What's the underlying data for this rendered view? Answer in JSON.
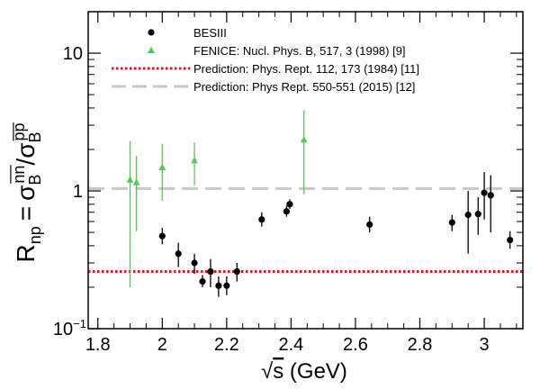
{
  "chart_data": {
    "type": "scatter",
    "title": "",
    "xlabel": "√s (GeV)",
    "ylabel": "R_np = σ_B^{n̅n}/σ_B^{p̅p}",
    "ylabel_parts": {
      "main": "R",
      "main_sub": "np",
      "equals": "=",
      "sigma1": "σ",
      "sigma1_sub": "B",
      "sigma1_sup": "n̅n̅",
      "slash": "/",
      "sigma2": "σ",
      "sigma2_sub": "B",
      "sigma2_sup": "p̅p̅"
    },
    "xlabel_parts": {
      "root": "√",
      "var": "s",
      "unit": " (GeV)"
    },
    "xlim": [
      1.77,
      3.12
    ],
    "ylim": [
      0.1,
      20
    ],
    "yscale": "log",
    "xticks": [
      "1.8",
      "2",
      "2.2",
      "2.4",
      "2.6",
      "2.8",
      "3"
    ],
    "xtick_values": [
      1.8,
      2.0,
      2.2,
      2.4,
      2.6,
      2.8,
      3.0
    ],
    "yticks": [
      {
        "value": 10,
        "label": "10"
      },
      {
        "value": 1,
        "label": "1"
      },
      {
        "value": 0.1,
        "label": "10",
        "exponent": "−1"
      }
    ],
    "legend_position": "top-left",
    "series": [
      {
        "name": "BESIII",
        "marker": "circle",
        "color": "#000000",
        "points": [
          {
            "x": 2.0,
            "y": 0.47,
            "lo": 0.41,
            "hi": 0.54
          },
          {
            "x": 2.05,
            "y": 0.35,
            "lo": 0.28,
            "hi": 0.42
          },
          {
            "x": 2.1,
            "y": 0.3,
            "lo": 0.25,
            "hi": 0.35
          },
          {
            "x": 2.125,
            "y": 0.22,
            "lo": 0.2,
            "hi": 0.245
          },
          {
            "x": 2.15,
            "y": 0.26,
            "lo": 0.2,
            "hi": 0.32
          },
          {
            "x": 2.175,
            "y": 0.205,
            "lo": 0.17,
            "hi": 0.24
          },
          {
            "x": 2.2,
            "y": 0.205,
            "lo": 0.175,
            "hi": 0.24
          },
          {
            "x": 2.232,
            "y": 0.26,
            "lo": 0.22,
            "hi": 0.3
          },
          {
            "x": 2.309,
            "y": 0.62,
            "lo": 0.55,
            "hi": 0.7
          },
          {
            "x": 2.386,
            "y": 0.71,
            "lo": 0.65,
            "hi": 0.78
          },
          {
            "x": 2.396,
            "y": 0.8,
            "lo": 0.74,
            "hi": 0.87
          },
          {
            "x": 2.644,
            "y": 0.57,
            "lo": 0.5,
            "hi": 0.65
          },
          {
            "x": 2.9,
            "y": 0.59,
            "lo": 0.51,
            "hi": 0.67
          },
          {
            "x": 2.95,
            "y": 0.67,
            "lo": 0.35,
            "hi": 1.0
          },
          {
            "x": 2.981,
            "y": 0.68,
            "lo": 0.48,
            "hi": 0.9
          },
          {
            "x": 3.0,
            "y": 0.97,
            "lo": 0.62,
            "hi": 1.37
          },
          {
            "x": 3.02,
            "y": 0.93,
            "lo": 0.5,
            "hi": 1.3
          },
          {
            "x": 3.08,
            "y": 0.44,
            "lo": 0.38,
            "hi": 0.51
          }
        ]
      },
      {
        "name": "FENICE: Nucl. Phys. B, 517, 3 (1998) [9]",
        "marker": "triangle",
        "color": "#55c855",
        "points": [
          {
            "x": 1.9,
            "y": 1.2,
            "lo": 0.2,
            "hi": 2.3
          },
          {
            "x": 1.92,
            "y": 1.15,
            "lo": 0.51,
            "hi": 1.8
          },
          {
            "x": 2.0,
            "y": 1.48,
            "lo": 0.85,
            "hi": 2.2
          },
          {
            "x": 2.1,
            "y": 1.66,
            "lo": 1.1,
            "hi": 2.25
          },
          {
            "x": 2.44,
            "y": 2.35,
            "lo": 0.95,
            "hi": 3.85
          }
        ]
      }
    ],
    "reference_lines": [
      {
        "name": "Prediction: Phys. Rept. 112, 173 (1984) [11]",
        "y": 0.26,
        "style": "dotted",
        "color": "#ee1111"
      },
      {
        "name": "Prediction: Phys Rept. 550-551 (2015) [12]",
        "y": 1.04,
        "style": "dashed",
        "color": "#c8c8c8"
      }
    ]
  }
}
